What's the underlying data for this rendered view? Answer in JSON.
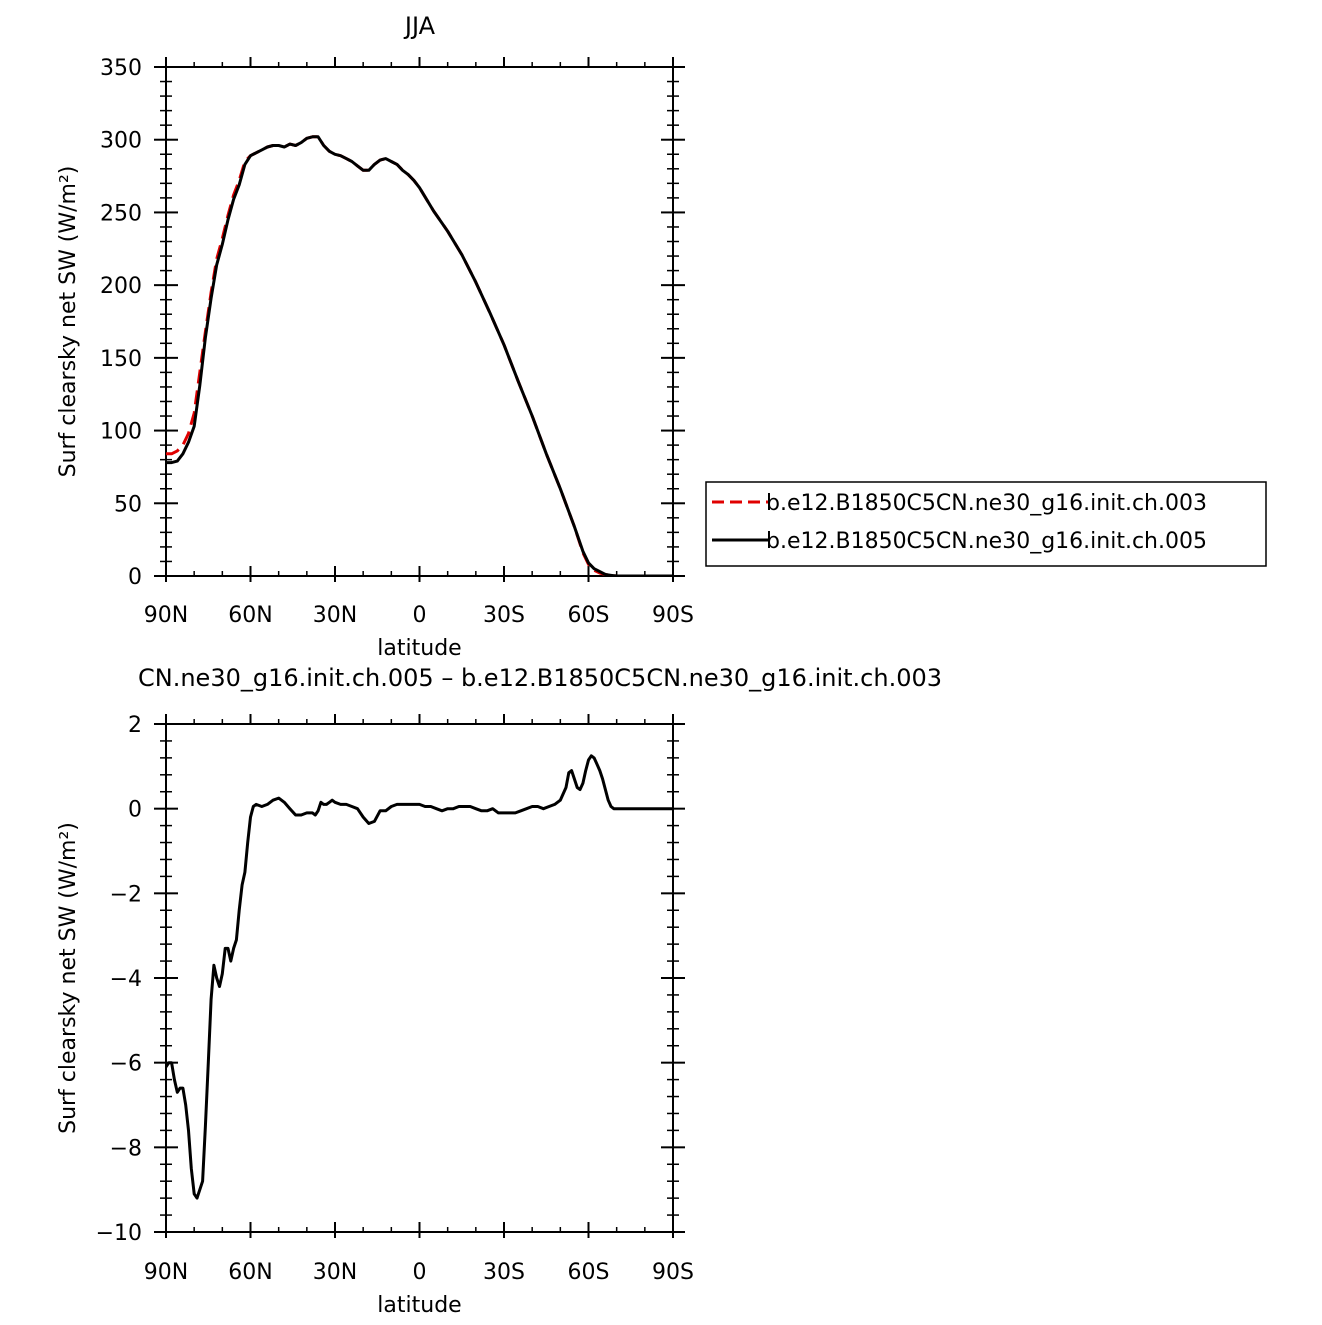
{
  "chart_data": [
    {
      "type": "line",
      "title": "JJA",
      "xlabel": "latitude",
      "ylabel": "Surf clearsky net SW (W/m²)",
      "xlim": [
        90,
        -90
      ],
      "ylim": [
        0,
        350
      ],
      "x_ticks": [
        90,
        60,
        30,
        0,
        -30,
        -60,
        -90
      ],
      "x_tick_labels": [
        "90N",
        "60N",
        "30N",
        "0",
        "30S",
        "60S",
        "90S"
      ],
      "y_ticks": [
        0,
        50,
        100,
        150,
        200,
        250,
        300,
        350
      ],
      "y_tick_labels": [
        "0",
        "50",
        "100",
        "150",
        "200",
        "250",
        "300",
        "350"
      ],
      "grid": false,
      "legend_position": "right",
      "series": [
        {
          "name": "b.e12.B1850C5CN.ne30_g16.init.ch.003",
          "color": "#e00000",
          "dash": "dashed",
          "x": [
            90,
            88,
            86,
            84,
            82,
            80,
            78,
            76,
            74,
            72,
            70,
            68,
            66,
            64,
            62,
            60,
            58,
            56,
            54,
            52,
            50,
            48,
            46,
            44,
            42,
            40,
            38,
            36,
            34,
            32,
            30,
            28,
            26,
            24,
            22,
            20,
            18,
            16,
            14,
            12,
            10,
            8,
            6,
            4,
            2,
            0,
            -5,
            -10,
            -15,
            -20,
            -25,
            -30,
            -35,
            -40,
            -45,
            -50,
            -55,
            -58,
            -60,
            -62,
            -64,
            -66,
            -68,
            -70,
            -75,
            -80,
            -85,
            -90
          ],
          "y": [
            84,
            84,
            86,
            90,
            98,
            112,
            140,
            168,
            195,
            218,
            232,
            248,
            262,
            272,
            285,
            289,
            291,
            293,
            295,
            296,
            296,
            295,
            297,
            296,
            298,
            301,
            302,
            302,
            296,
            292,
            290,
            289,
            287,
            285,
            282,
            279,
            279,
            283,
            286,
            287,
            285,
            283,
            279,
            276,
            272,
            267,
            251,
            237,
            221,
            202,
            181,
            159,
            134,
            110,
            84,
            60,
            34,
            16,
            8,
            4,
            2,
            1,
            0.5,
            0,
            0,
            0,
            0,
            0
          ]
        },
        {
          "name": "b.e12.B1850C5CN.ne30_g16.init.ch.005",
          "color": "#000000",
          "dash": "solid",
          "x": [
            90,
            88,
            86,
            84,
            82,
            80,
            78,
            76,
            74,
            72,
            70,
            68,
            66,
            64,
            62,
            60,
            58,
            56,
            54,
            52,
            50,
            48,
            46,
            44,
            42,
            40,
            38,
            36,
            34,
            32,
            30,
            28,
            26,
            24,
            22,
            20,
            18,
            16,
            14,
            12,
            10,
            8,
            6,
            4,
            2,
            0,
            -5,
            -10,
            -15,
            -20,
            -25,
            -30,
            -35,
            -40,
            -45,
            -50,
            -55,
            -58,
            -60,
            -62,
            -64,
            -66,
            -68,
            -70,
            -75,
            -80,
            -85,
            -90
          ],
          "y": [
            78,
            78,
            79,
            84,
            92,
            103,
            131,
            164,
            191,
            214,
            228,
            245,
            259,
            269,
            283,
            289,
            291,
            293,
            295,
            296,
            296,
            295,
            297,
            296,
            298,
            301,
            302,
            302,
            296,
            292,
            290,
            289,
            287,
            285,
            282,
            279,
            279,
            283,
            286,
            287,
            285,
            283,
            279,
            276,
            272,
            267,
            251,
            237,
            221,
            202,
            181,
            159,
            134,
            110,
            84,
            60,
            34,
            17,
            9,
            5,
            3,
            1,
            0.5,
            0,
            0,
            0,
            0,
            0
          ]
        }
      ]
    },
    {
      "type": "line",
      "title": "CN.ne30_g16.init.ch.005 – b.e12.B1850C5CN.ne30_g16.init.ch.003",
      "xlabel": "latitude",
      "ylabel": "Surf clearsky net SW (W/m²)",
      "xlim": [
        90,
        -90
      ],
      "ylim": [
        -10,
        2
      ],
      "x_ticks": [
        90,
        60,
        30,
        0,
        -30,
        -60,
        -90
      ],
      "x_tick_labels": [
        "90N",
        "60N",
        "30N",
        "0",
        "30S",
        "60S",
        "90S"
      ],
      "y_ticks": [
        -10,
        -8,
        -6,
        -4,
        -2,
        0,
        2
      ],
      "y_tick_labels": [
        "−10",
        "−8",
        "−6",
        "−4",
        "−2",
        "0",
        "2"
      ],
      "grid": false,
      "series": [
        {
          "color": "#000000",
          "dash": "solid",
          "x": [
            90,
            89,
            88,
            87,
            86,
            85,
            84,
            83,
            82,
            81,
            80,
            79,
            78,
            77,
            76,
            75,
            74,
            73,
            72,
            71,
            70,
            69,
            68,
            67,
            66,
            65,
            64,
            63,
            62,
            61,
            60,
            59,
            58,
            56,
            54,
            52,
            50,
            48,
            46,
            44,
            42,
            40,
            38,
            37,
            36,
            35,
            34,
            33,
            32,
            31,
            30,
            28,
            26,
            24,
            22,
            20,
            18,
            16,
            14,
            12,
            10,
            8,
            6,
            4,
            2,
            0,
            -2,
            -4,
            -6,
            -8,
            -10,
            -12,
            -14,
            -16,
            -18,
            -20,
            -22,
            -24,
            -26,
            -28,
            -30,
            -32,
            -34,
            -36,
            -38,
            -40,
            -42,
            -44,
            -46,
            -48,
            -50,
            -52,
            -53,
            -54,
            -55,
            -56,
            -57,
            -58,
            -59,
            -60,
            -61,
            -62,
            -63,
            -64,
            -65,
            -66,
            -67,
            -68,
            -69,
            -70,
            -71,
            -72,
            -73,
            -75,
            -80,
            -85,
            -90
          ],
          "y": [
            -6.1,
            -6.0,
            -6.0,
            -6.4,
            -6.7,
            -6.6,
            -6.6,
            -7.0,
            -7.6,
            -8.5,
            -9.1,
            -9.2,
            -9.0,
            -8.8,
            -7.5,
            -6.0,
            -4.5,
            -3.7,
            -4.0,
            -4.2,
            -3.9,
            -3.3,
            -3.3,
            -3.6,
            -3.3,
            -3.1,
            -2.4,
            -1.8,
            -1.5,
            -0.8,
            -0.2,
            0.05,
            0.1,
            0.05,
            0.1,
            0.2,
            0.25,
            0.15,
            0.0,
            -0.15,
            -0.15,
            -0.1,
            -0.1,
            -0.15,
            -0.05,
            0.15,
            0.1,
            0.1,
            0.15,
            0.2,
            0.15,
            0.1,
            0.1,
            0.05,
            0.0,
            -0.2,
            -0.35,
            -0.3,
            -0.05,
            -0.05,
            0.05,
            0.1,
            0.1,
            0.1,
            0.1,
            0.1,
            0.05,
            0.05,
            0.0,
            -0.05,
            0.0,
            0.0,
            0.05,
            0.05,
            0.05,
            0.0,
            -0.05,
            -0.05,
            0.0,
            -0.1,
            -0.1,
            -0.1,
            -0.1,
            -0.05,
            0.0,
            0.05,
            0.05,
            0.0,
            0.05,
            0.1,
            0.2,
            0.5,
            0.85,
            0.9,
            0.7,
            0.5,
            0.45,
            0.6,
            0.9,
            1.15,
            1.25,
            1.2,
            1.05,
            0.9,
            0.7,
            0.45,
            0.2,
            0.05,
            0.0,
            0.0,
            0.0,
            0.0,
            0.0,
            0.0,
            0.0,
            0.0,
            0.0
          ]
        }
      ]
    }
  ]
}
